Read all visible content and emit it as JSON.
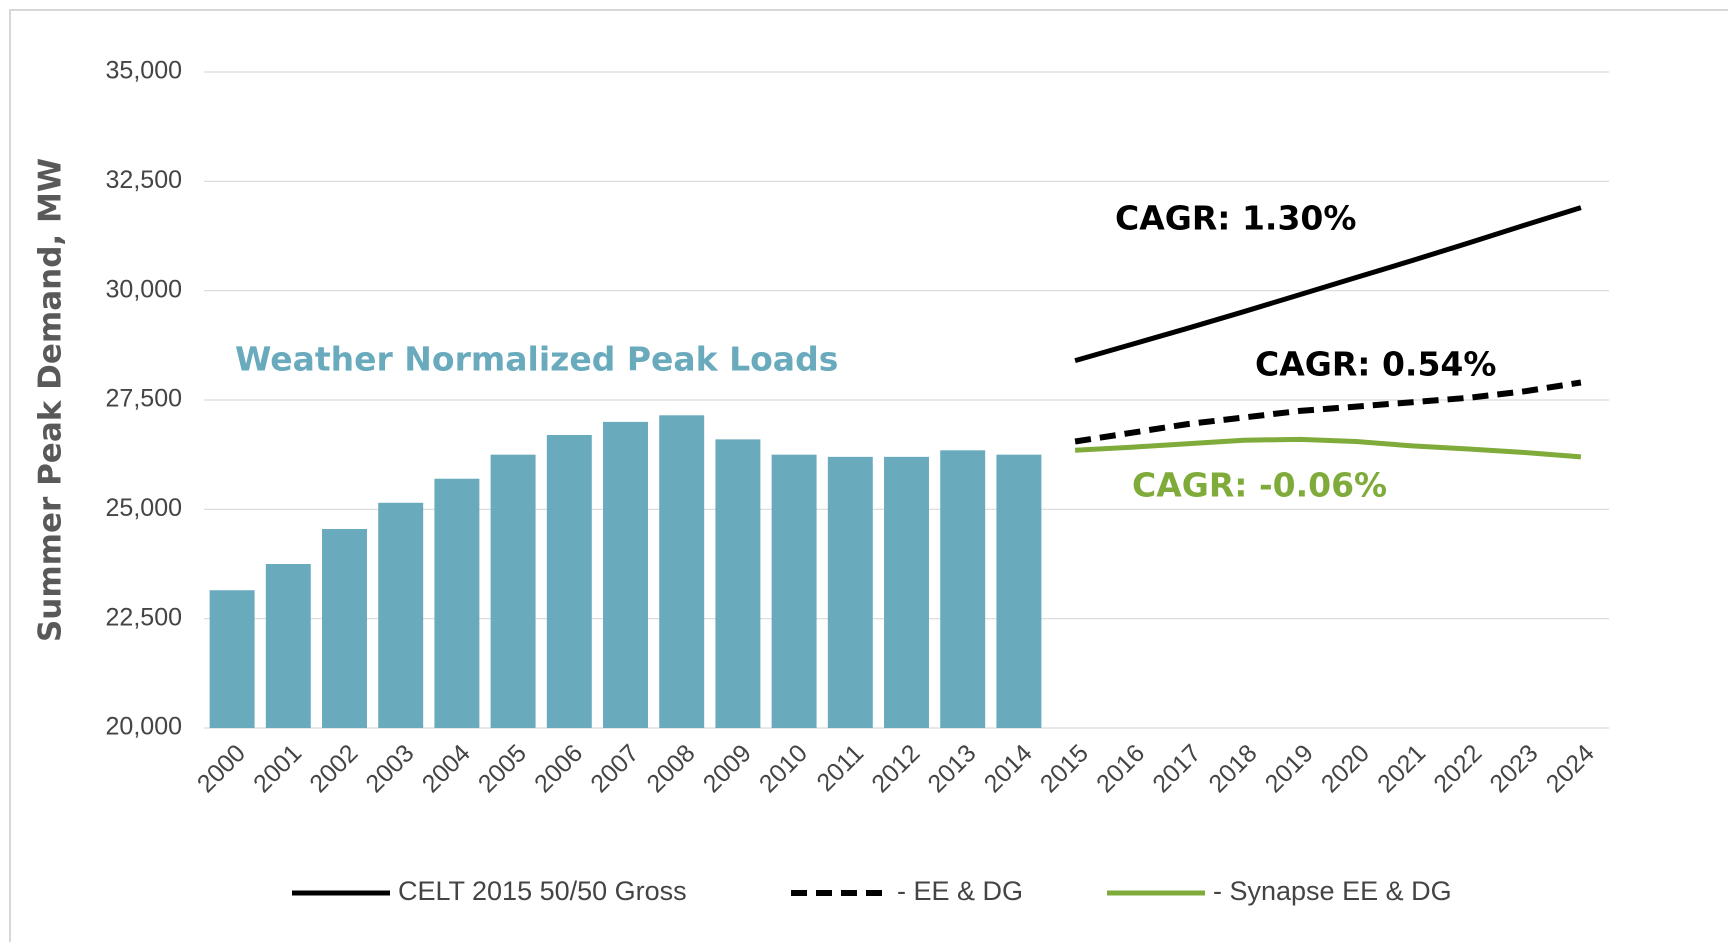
{
  "chart_data": {
    "type": "bar_line",
    "y_label": "Summer Peak Demand, MW",
    "categories": [
      "2000",
      "2001",
      "2002",
      "2003",
      "2004",
      "2005",
      "2006",
      "2007",
      "2008",
      "2009",
      "2010",
      "2011",
      "2012",
      "2013",
      "2014",
      "2015",
      "2016",
      "2017",
      "2018",
      "2019",
      "2020",
      "2021",
      "2022",
      "2023",
      "2024"
    ],
    "bars": {
      "name": "Weather Normalized Peak Loads",
      "color": "#69abbd",
      "values": [
        23150,
        23750,
        24550,
        25150,
        25700,
        26250,
        26700,
        27000,
        27150,
        26600,
        26250,
        26200,
        26200,
        26350,
        26250,
        null,
        null,
        null,
        null,
        null,
        null,
        null,
        null,
        null,
        null
      ]
    },
    "series": [
      {
        "name": "CELT 2015 50/50 Gross",
        "color": "#000000",
        "dash": false,
        "values": [
          null,
          null,
          null,
          null,
          null,
          null,
          null,
          null,
          null,
          null,
          null,
          null,
          null,
          null,
          null,
          28400,
          28770,
          29140,
          29520,
          29910,
          30300,
          30690,
          31090,
          31500,
          31900
        ]
      },
      {
        "name": "- EE & DG",
        "color": "#000000",
        "dash": true,
        "values": [
          null,
          null,
          null,
          null,
          null,
          null,
          null,
          null,
          null,
          null,
          null,
          null,
          null,
          null,
          null,
          26550,
          26750,
          26950,
          27100,
          27250,
          27350,
          27450,
          27550,
          27700,
          27900
        ]
      },
      {
        "name": "- Synapse EE & DG",
        "color": "#7fab3a",
        "dash": false,
        "values": [
          null,
          null,
          null,
          null,
          null,
          null,
          null,
          null,
          null,
          null,
          null,
          null,
          null,
          null,
          null,
          26350,
          26420,
          26500,
          26580,
          26600,
          26550,
          26450,
          26380,
          26300,
          26200
        ]
      }
    ],
    "annotations": [
      {
        "text": "CAGR: 1.30%",
        "color": "#000000"
      },
      {
        "text": "CAGR: 0.54%",
        "color": "#000000"
      },
      {
        "text": "CAGR: -0.06%",
        "color": "#7fab3a"
      }
    ],
    "ylim": [
      20000,
      35000
    ],
    "yticks": [
      {
        "value": 20000,
        "label": "20,000"
      },
      {
        "value": 22500,
        "label": "22,500"
      },
      {
        "value": 25000,
        "label": "25,000"
      },
      {
        "value": 27500,
        "label": "27,500"
      },
      {
        "value": 30000,
        "label": "30,000"
      },
      {
        "value": 32500,
        "label": "32,500"
      },
      {
        "value": 35000,
        "label": "35,000"
      }
    ],
    "grid": true,
    "legend": "bottom"
  }
}
